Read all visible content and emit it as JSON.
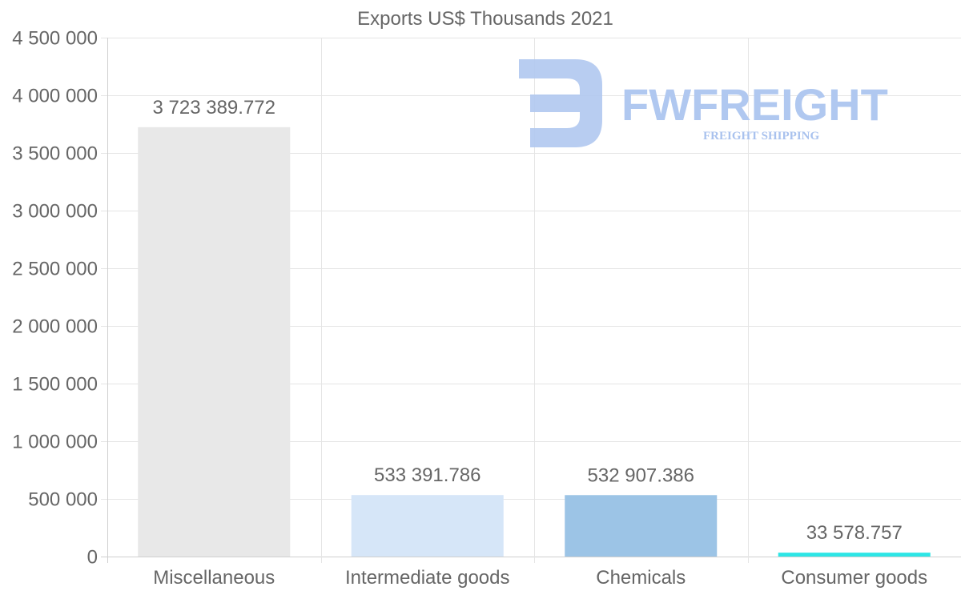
{
  "chart_data": {
    "type": "bar",
    "title": "Exports US$ Thousands 2021",
    "categories": [
      "Miscellaneous",
      "Intermediate goods",
      "Chemicals",
      "Consumer goods"
    ],
    "values": [
      3723389.772,
      533391.786,
      532907.386,
      33578.757
    ],
    "value_labels": [
      "3 723 389.772",
      "533 391.786",
      "532 907.386",
      "33 578.757"
    ],
    "colors": [
      "#e8e8e8",
      "#d6e6f8",
      "#9cc4e6",
      "#2de6e6"
    ],
    "ylim": [
      0,
      4500000
    ],
    "yticks": [
      0,
      500000,
      1000000,
      1500000,
      2000000,
      2500000,
      3000000,
      3500000,
      4000000,
      4500000
    ],
    "ytick_labels": [
      "0",
      "500 000",
      "1 000 000",
      "1 500 000",
      "2 000 000",
      "2 500 000",
      "3 000 000",
      "3 500 000",
      "4 000 000",
      "4 500 000"
    ],
    "xlabel": "",
    "ylabel": "",
    "grid": true
  },
  "watermark": {
    "brand": "FWFREIGHT",
    "tagline": "FREIGHT SHIPPING",
    "color": "#b0c8f0"
  }
}
